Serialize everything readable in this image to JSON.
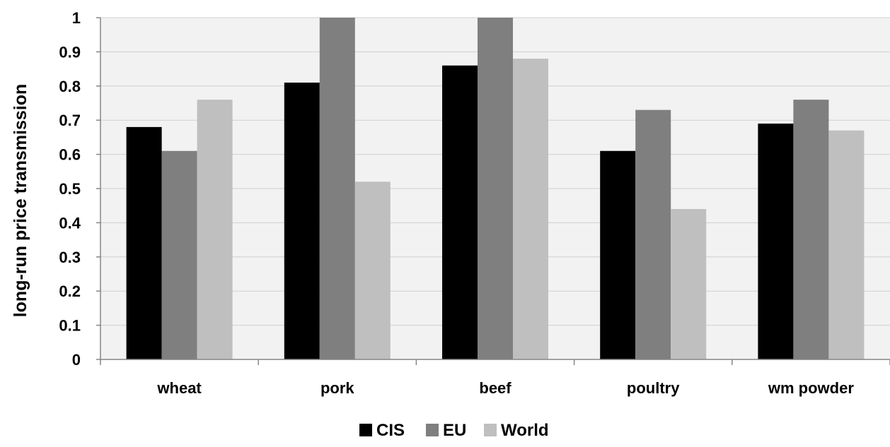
{
  "chart_data": {
    "type": "bar",
    "categories": [
      "wheat",
      "pork",
      "beef",
      "poultry",
      "wm powder"
    ],
    "series": [
      {
        "name": "CIS",
        "values": [
          0.68,
          0.81,
          0.86,
          0.61,
          0.69
        ],
        "color": "#000000"
      },
      {
        "name": "EU",
        "values": [
          0.61,
          1.0,
          1.0,
          0.73,
          0.76
        ],
        "color": "#7f7f7f"
      },
      {
        "name": "World",
        "values": [
          0.76,
          0.52,
          0.88,
          0.44,
          0.67
        ],
        "color": "#bfbfbf"
      }
    ],
    "ylabel": "long-run price transmission",
    "xlabel": "",
    "ylim": [
      0,
      1
    ],
    "yticks": [
      "0",
      "0.1",
      "0.2",
      "0.3",
      "0.4",
      "0.5",
      "0.6",
      "0.7",
      "0.8",
      "0.9",
      "1"
    ],
    "grid": true,
    "legend": "bottom-center",
    "plot_background": "#f2f2f2",
    "grid_color": "#d0d0d0"
  }
}
